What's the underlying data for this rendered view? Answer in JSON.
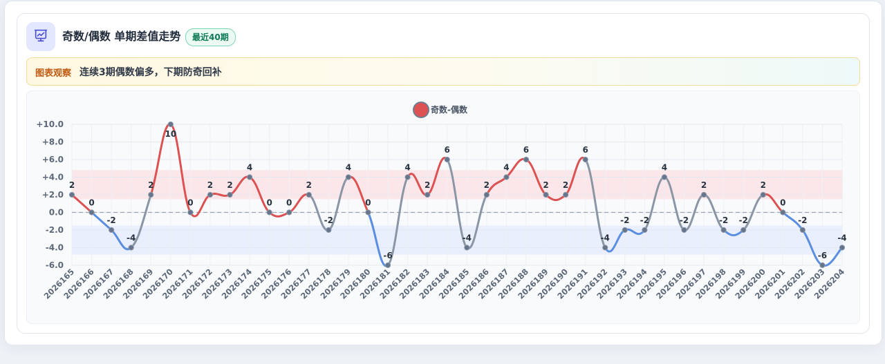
{
  "header": {
    "title": "奇数/偶数 单期差值走势",
    "badge": "最近40期",
    "icon": "presentation-chart-icon"
  },
  "observation": {
    "label": "图表观察",
    "text": "连续3期偶数偏多，下期防奇回补"
  },
  "colors": {
    "positive_line": "#dc5252",
    "negative_line": "#5b8ee0",
    "transition_line": "#8a96a6",
    "positive_band": "#fbe3e5",
    "negative_band": "#e6ecfb",
    "marker": "#66758a"
  },
  "chart_data": {
    "type": "line",
    "title": "",
    "xlabel": "",
    "ylabel": "",
    "ylim": [
      -6,
      10
    ],
    "yticks": [
      "+10.0",
      "+8.0",
      "+6.0",
      "+4.0",
      "+2.0",
      "0.0",
      "-2.0",
      "-4.0",
      "-6.0"
    ],
    "ytick_values": [
      10,
      8,
      6,
      4,
      2,
      0,
      -2,
      -4,
      -6
    ],
    "grid": true,
    "legend": "top-center",
    "bands": [
      {
        "from": 1.5,
        "to": 4.8,
        "color": "positive_band"
      },
      {
        "from": -1.5,
        "to": -4.8,
        "color": "negative_band"
      }
    ],
    "zero_line": "dashed",
    "categories": [
      "2026165",
      "2026166",
      "2026167",
      "2026168",
      "2026169",
      "2026170",
      "2026171",
      "2026172",
      "2026173",
      "2026174",
      "2026175",
      "2026176",
      "2026177",
      "2026178",
      "2026179",
      "2026180",
      "2026181",
      "2026182",
      "2026183",
      "2026184",
      "2026185",
      "2026186",
      "2026187",
      "2026188",
      "2026189",
      "2026190",
      "2026191",
      "2026192",
      "2026193",
      "2026194",
      "2026195",
      "2026196",
      "2026197",
      "2026198",
      "2026199",
      "2026200",
      "2026201",
      "2026202",
      "2026203",
      "2026204"
    ],
    "series": [
      {
        "name": "奇数-偶数",
        "values": [
          2,
          0,
          -2,
          -4,
          2,
          10,
          0,
          2,
          2,
          4,
          0,
          0,
          2,
          -2,
          4,
          0,
          -6,
          4,
          2,
          6,
          -4,
          2,
          4,
          6,
          2,
          2,
          6,
          -4,
          -2,
          -2,
          4,
          -2,
          2,
          -2,
          -2,
          2,
          0,
          -2,
          -6,
          -4
        ]
      }
    ]
  }
}
